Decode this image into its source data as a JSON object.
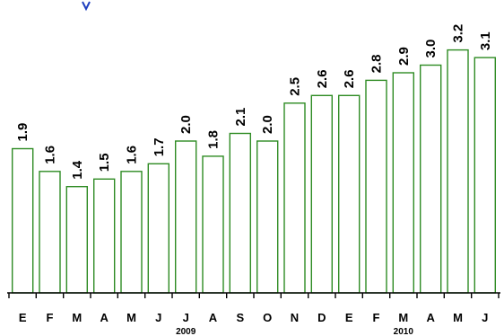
{
  "chart_data": {
    "type": "bar",
    "categories": [
      "E",
      "F",
      "M",
      "A",
      "M",
      "J",
      "J",
      "A",
      "S",
      "O",
      "N",
      "D",
      "E",
      "F",
      "M",
      "A",
      "M",
      "J"
    ],
    "values": [
      1.9,
      1.6,
      1.4,
      1.5,
      1.6,
      1.7,
      2.0,
      1.8,
      2.1,
      2.0,
      2.5,
      2.6,
      2.6,
      2.8,
      2.9,
      3.0,
      3.2,
      3.1
    ],
    "value_labels": [
      "1.9",
      "1.6",
      "1.4",
      "1.5",
      "1.6",
      "1.7",
      "2.0",
      "1.8",
      "2.1",
      "2.0",
      "2.5",
      "2.6",
      "2.6",
      "2.8",
      "2.9",
      "3.0",
      "3.2",
      "3.1"
    ],
    "year_labels": [
      {
        "text": "2009",
        "category_index": 6
      },
      {
        "text": "2010",
        "category_index": 14
      }
    ],
    "title": "",
    "xlabel": "",
    "ylabel": "",
    "ylim": [
      0,
      3.4
    ],
    "grid": false,
    "legend": "none",
    "colors": {
      "bar_stroke": "#2e8b23",
      "bar_fill": "#ffffff",
      "text": "#000000",
      "axis": "#000000"
    }
  }
}
